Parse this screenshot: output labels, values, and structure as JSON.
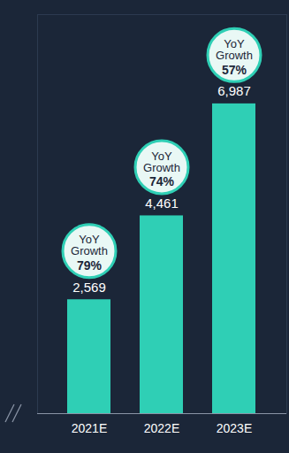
{
  "chart_data": {
    "type": "bar",
    "categories": [
      "2021E",
      "2022E",
      "2023E"
    ],
    "values": [
      2569,
      4461,
      6987
    ],
    "value_labels": [
      "2,569",
      "4,461",
      "6,987"
    ],
    "data_labels": true,
    "color": "#2fcfb5",
    "ylim": [
      0,
      9000
    ],
    "yticks": [],
    "tick_labels": "x",
    "grid": false,
    "annotation": "YoY Growth",
    "growth": [
      79,
      74,
      57
    ],
    "growth_labels": [
      "79%",
      "74%",
      "57%"
    ]
  }
}
